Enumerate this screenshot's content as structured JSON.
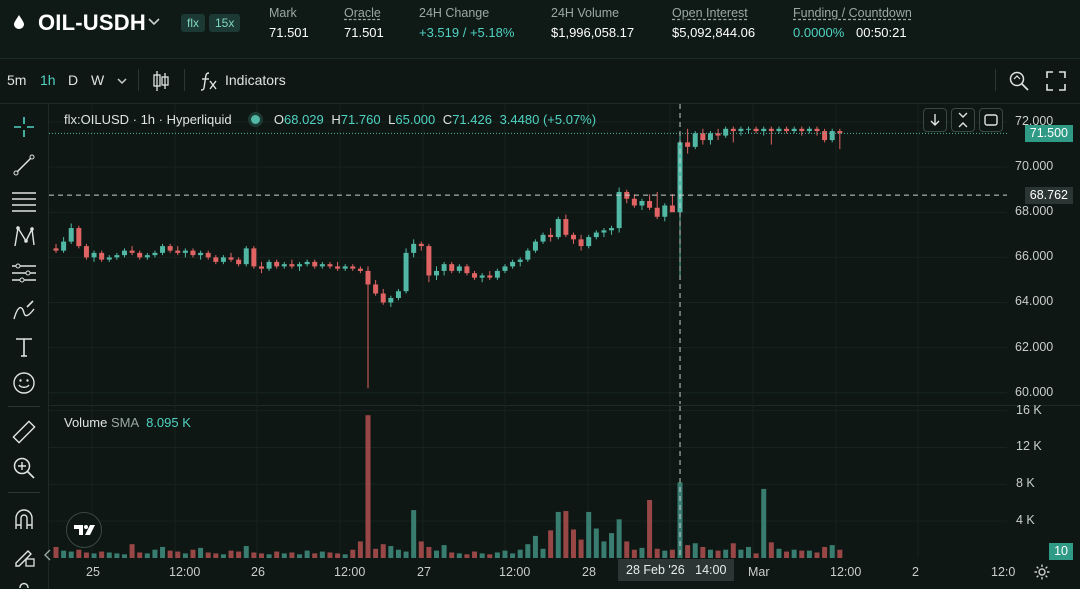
{
  "header": {
    "symbol": "OIL-USDH",
    "badges": [
      "flx",
      "15x"
    ],
    "stats": [
      {
        "label": "Mark",
        "value": "71.501",
        "underline": false,
        "green": false
      },
      {
        "label": "Oracle",
        "value": "71.501",
        "underline": true,
        "green": false
      },
      {
        "label": "24H Change",
        "value": "+3.519 / +5.18%",
        "underline": false,
        "green": true
      },
      {
        "label": "24H Volume",
        "value": "$1,996,058.17",
        "underline": false,
        "green": false
      },
      {
        "label": "Open Interest",
        "value": "$5,092,844.06",
        "underline": true,
        "green": false
      },
      {
        "label": "Funding / Countdown",
        "value": "0.0000%",
        "value2": "00:50:21",
        "underline": true,
        "green": true
      }
    ]
  },
  "toolbar": {
    "timeframes": [
      "5m",
      "1h",
      "D",
      "W"
    ],
    "active_timeframe": "1h",
    "indicators_label": "Indicators"
  },
  "legend": {
    "title": "flx:OILUSD · 1h · Hyperliquid",
    "o_key": "O",
    "o": "68.029",
    "h_key": "H",
    "h": "71.760",
    "l_key": "L",
    "l": "65.000",
    "c_key": "C",
    "c": "71.426",
    "change": "3.4480 (+5.07%)"
  },
  "volume_legend": {
    "label": "Volume",
    "ma": "SMA",
    "value": "8.095 K"
  },
  "colors": {
    "up": "#50b8a4",
    "down": "#e06464",
    "bg": "#0e1714",
    "accent": "#50d2c1"
  },
  "chart_data": {
    "type": "candlestick",
    "price_axis": {
      "ticks": [
        "72.000",
        "70.000",
        "68.000",
        "66.000",
        "64.000",
        "62.000",
        "60.000"
      ],
      "range": [
        59.5,
        72.8
      ]
    },
    "volume_axis": {
      "ticks": [
        "16 K",
        "12 K",
        "8 K",
        "4 K"
      ],
      "range": [
        0,
        16500
      ]
    },
    "x_ticks": [
      "25",
      "12:00",
      "26",
      "12:00",
      "27",
      "12:00",
      "28",
      "Mar",
      "12:00",
      "2",
      "12:0"
    ],
    "crosshair": {
      "time_label": "28 Feb '26   14:00",
      "price_label": "68.762",
      "price": 68.762
    },
    "last_price": {
      "label": "71.500",
      "price": 71.5
    },
    "last_volume_label": "10",
    "ohlc": [
      [
        66.4,
        66.6,
        66.2,
        66.3
      ],
      [
        66.3,
        66.9,
        66.2,
        66.7
      ],
      [
        66.7,
        67.5,
        66.6,
        67.3
      ],
      [
        67.3,
        67.4,
        66.4,
        66.5
      ],
      [
        66.5,
        66.6,
        65.9,
        66.0
      ],
      [
        66.0,
        66.3,
        65.8,
        66.2
      ],
      [
        66.2,
        66.3,
        65.8,
        65.9
      ],
      [
        65.9,
        66.1,
        65.8,
        66.0
      ],
      [
        66.0,
        66.2,
        65.9,
        66.1
      ],
      [
        66.1,
        66.4,
        66.0,
        66.3
      ],
      [
        66.3,
        66.5,
        66.1,
        66.2
      ],
      [
        66.2,
        66.3,
        65.9,
        66.0
      ],
      [
        66.0,
        66.2,
        65.9,
        66.1
      ],
      [
        66.1,
        66.3,
        66.0,
        66.2
      ],
      [
        66.2,
        66.6,
        66.1,
        66.5
      ],
      [
        66.5,
        66.6,
        66.2,
        66.3
      ],
      [
        66.3,
        66.5,
        66.1,
        66.2
      ],
      [
        66.2,
        66.4,
        66.0,
        66.3
      ],
      [
        66.3,
        66.4,
        66.0,
        66.1
      ],
      [
        66.1,
        66.3,
        65.9,
        66.2
      ],
      [
        66.2,
        66.3,
        65.9,
        66.0
      ],
      [
        66.0,
        66.1,
        65.7,
        65.8
      ],
      [
        65.8,
        66.1,
        65.7,
        66.0
      ],
      [
        66.0,
        66.2,
        65.8,
        65.9
      ],
      [
        65.9,
        66.0,
        65.6,
        65.7
      ],
      [
        65.7,
        66.5,
        65.6,
        66.4
      ],
      [
        66.4,
        66.5,
        65.5,
        65.6
      ],
      [
        65.6,
        65.8,
        65.3,
        65.5
      ],
      [
        65.5,
        65.9,
        65.4,
        65.8
      ],
      [
        65.8,
        65.9,
        65.5,
        65.6
      ],
      [
        65.6,
        65.8,
        65.5,
        65.7
      ],
      [
        65.7,
        65.9,
        65.5,
        65.6
      ],
      [
        65.6,
        65.8,
        65.4,
        65.7
      ],
      [
        65.7,
        65.9,
        65.6,
        65.8
      ],
      [
        65.8,
        65.9,
        65.5,
        65.6
      ],
      [
        65.6,
        65.8,
        65.5,
        65.7
      ],
      [
        65.7,
        65.8,
        65.5,
        65.6
      ],
      [
        65.6,
        65.8,
        65.4,
        65.5
      ],
      [
        65.5,
        65.7,
        65.4,
        65.6
      ],
      [
        65.6,
        65.7,
        65.4,
        65.5
      ],
      [
        65.5,
        65.6,
        65.3,
        65.4
      ],
      [
        65.4,
        65.6,
        60.2,
        64.8
      ],
      [
        64.8,
        65.0,
        64.3,
        64.4
      ],
      [
        64.4,
        64.6,
        63.9,
        64.0
      ],
      [
        64.0,
        64.3,
        63.8,
        64.2
      ],
      [
        64.2,
        64.6,
        64.1,
        64.5
      ],
      [
        64.5,
        66.4,
        64.4,
        66.2
      ],
      [
        66.2,
        66.8,
        66.0,
        66.6
      ],
      [
        66.6,
        66.7,
        66.3,
        66.5
      ],
      [
        66.5,
        66.6,
        64.9,
        65.2
      ],
      [
        65.2,
        65.6,
        65.0,
        65.4
      ],
      [
        65.4,
        65.8,
        65.2,
        65.7
      ],
      [
        65.7,
        65.8,
        65.3,
        65.4
      ],
      [
        65.4,
        65.7,
        65.3,
        65.6
      ],
      [
        65.6,
        65.7,
        65.2,
        65.3
      ],
      [
        65.3,
        65.4,
        65.0,
        65.1
      ],
      [
        65.1,
        65.3,
        64.9,
        65.2
      ],
      [
        65.2,
        65.4,
        65.0,
        65.1
      ],
      [
        65.1,
        65.5,
        65.0,
        65.4
      ],
      [
        65.4,
        65.7,
        65.3,
        65.6
      ],
      [
        65.6,
        65.9,
        65.5,
        65.8
      ],
      [
        65.8,
        66.0,
        65.6,
        65.9
      ],
      [
        65.9,
        66.4,
        65.8,
        66.3
      ],
      [
        66.3,
        66.8,
        66.2,
        66.7
      ],
      [
        66.7,
        67.1,
        66.6,
        67.0
      ],
      [
        67.0,
        67.3,
        66.7,
        66.9
      ],
      [
        66.9,
        67.8,
        66.8,
        67.7
      ],
      [
        67.7,
        67.9,
        66.9,
        67.0
      ],
      [
        67.0,
        67.1,
        66.6,
        66.8
      ],
      [
        66.8,
        67.0,
        66.3,
        66.5
      ],
      [
        66.5,
        67.0,
        66.4,
        66.9
      ],
      [
        66.9,
        67.2,
        66.8,
        67.1
      ],
      [
        67.1,
        67.3,
        66.9,
        67.2
      ],
      [
        67.2,
        67.4,
        67.0,
        67.3
      ],
      [
        67.3,
        69.1,
        67.1,
        68.9
      ],
      [
        68.9,
        69.0,
        68.4,
        68.6
      ],
      [
        68.6,
        68.8,
        68.2,
        68.3
      ],
      [
        68.3,
        68.6,
        68.1,
        68.5
      ],
      [
        68.5,
        68.8,
        68.1,
        68.2
      ],
      [
        68.2,
        68.9,
        67.7,
        67.8
      ],
      [
        67.8,
        68.4,
        67.6,
        68.3
      ],
      [
        68.3,
        68.8,
        68.1,
        68.0
      ],
      [
        68.0,
        71.5,
        65.0,
        71.1
      ],
      [
        71.1,
        71.7,
        70.6,
        70.9
      ],
      [
        70.9,
        71.6,
        70.8,
        71.5
      ],
      [
        71.5,
        71.7,
        71.0,
        71.2
      ],
      [
        71.2,
        71.6,
        71.0,
        71.5
      ],
      [
        71.5,
        71.7,
        71.2,
        71.4
      ],
      [
        71.4,
        71.8,
        71.3,
        71.7
      ],
      [
        71.7,
        71.8,
        71.1,
        71.6
      ],
      [
        71.6,
        71.8,
        71.4,
        71.7
      ],
      [
        71.7,
        71.8,
        71.5,
        71.7
      ],
      [
        71.7,
        71.8,
        71.5,
        71.6
      ],
      [
        71.6,
        71.8,
        71.4,
        71.7
      ],
      [
        71.7,
        71.8,
        71.0,
        71.6
      ],
      [
        71.6,
        71.8,
        71.5,
        71.7
      ],
      [
        71.7,
        71.8,
        71.5,
        71.6
      ],
      [
        71.6,
        71.8,
        71.5,
        71.7
      ],
      [
        71.7,
        71.8,
        71.4,
        71.6
      ],
      [
        71.6,
        71.8,
        71.5,
        71.7
      ],
      [
        71.7,
        71.8,
        71.4,
        71.6
      ],
      [
        71.6,
        71.7,
        71.1,
        71.2
      ],
      [
        71.2,
        71.7,
        71.1,
        71.6
      ],
      [
        71.6,
        71.7,
        70.8,
        71.5
      ]
    ],
    "volume": [
      1200,
      800,
      700,
      900,
      600,
      500,
      700,
      600,
      500,
      400,
      1500,
      600,
      500,
      900,
      1200,
      800,
      700,
      500,
      900,
      1100,
      600,
      500,
      400,
      800,
      700,
      1300,
      600,
      500,
      400,
      700,
      500,
      600,
      400,
      800,
      500,
      700,
      600,
      500,
      400,
      900,
      1800,
      15500,
      1000,
      1500,
      1300,
      900,
      700,
      5200,
      1800,
      1200,
      800,
      1400,
      600,
      500,
      400,
      700,
      500,
      400,
      600,
      800,
      500,
      900,
      1500,
      2400,
      1000,
      3000,
      5000,
      5100,
      3100,
      2000,
      5000,
      3200,
      1800,
      2700,
      4200,
      1800,
      900,
      1100,
      6300,
      1000,
      800,
      900,
      8200,
      1400,
      1600,
      1200,
      900,
      800,
      900,
      1600,
      900,
      1200,
      500,
      7500,
      1700,
      1000,
      700,
      900,
      800,
      800,
      600,
      1200,
      1400,
      900
    ]
  }
}
